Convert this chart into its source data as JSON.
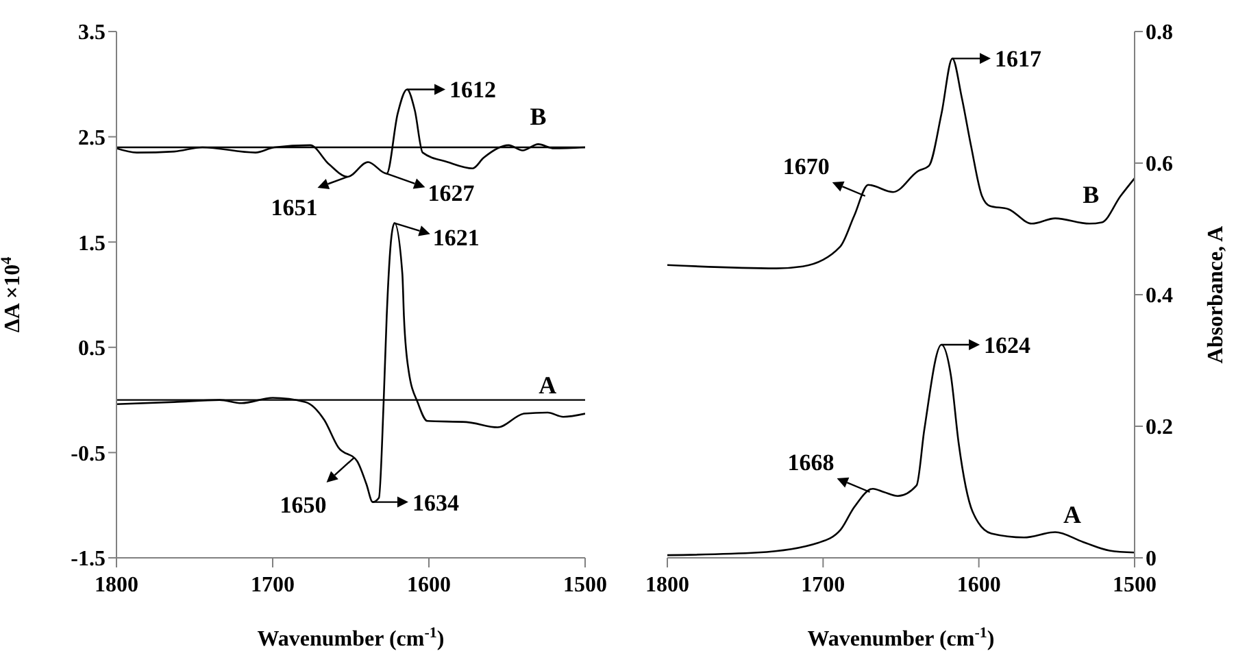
{
  "chart_data": [
    {
      "type": "line",
      "xlabel": "Wavenumber (cm$^{-1}$)",
      "ylabel": "ΔA ×10$^{4}$",
      "xlim": [
        1800,
        1500
      ],
      "xticks": [
        1800,
        1700,
        1600,
        1500
      ],
      "ylim": [
        -1.5,
        3.5
      ],
      "yticks": [
        -1.5,
        -0.5,
        0.5,
        1.5,
        2.5,
        3.5
      ],
      "marker": "none",
      "line_style": "solid",
      "series": [
        {
          "name": "B",
          "color": "#000000",
          "x": [
            1800,
            1787,
            1763,
            1745,
            1711,
            1699,
            1676,
            1664,
            1652,
            1639,
            1627,
            1620,
            1614,
            1609,
            1604,
            1588,
            1572,
            1565,
            1549,
            1540,
            1530,
            1520,
            1500
          ],
          "values": [
            2.39,
            2.35,
            2.36,
            2.4,
            2.35,
            2.4,
            2.42,
            2.24,
            2.12,
            2.26,
            2.15,
            2.72,
            2.95,
            2.75,
            2.35,
            2.26,
            2.2,
            2.3,
            2.42,
            2.37,
            2.43,
            2.39,
            2.4
          ]
        },
        {
          "name": "A",
          "color": "#000000",
          "x": [
            1800,
            1763,
            1734,
            1720,
            1700,
            1679,
            1667,
            1658,
            1646,
            1640,
            1636,
            1632,
            1629,
            1627,
            1624,
            1622,
            1617,
            1616,
            1613,
            1607,
            1601,
            1576,
            1556,
            1539,
            1524,
            1514,
            1500
          ],
          "values": [
            -0.04,
            -0.02,
            0,
            -0.03,
            0.02,
            -0.02,
            -0.19,
            -0.45,
            -0.58,
            -0.8,
            -0.97,
            -0.93,
            -0.03,
            0.8,
            1.55,
            1.68,
            1.2,
            0.8,
            0.28,
            -0.03,
            -0.2,
            -0.21,
            -0.26,
            -0.13,
            -0.12,
            -0.16,
            -0.13
          ]
        }
      ],
      "ref_lines": [
        {
          "axis": "y",
          "value": 2.4,
          "color": "#000000"
        },
        {
          "axis": "y",
          "value": 0,
          "color": "#000000"
        }
      ],
      "annotations": [
        {
          "text": "1612",
          "x": 1614,
          "y": 2.95
        },
        {
          "text": "1651",
          "x": 1652,
          "y": 2.12
        },
        {
          "text": "1627",
          "x": 1627,
          "y": 2.15
        },
        {
          "text": "1621",
          "x": 1622,
          "y": 1.68
        },
        {
          "text": "1650",
          "x": 1648,
          "y": -0.55
        },
        {
          "text": "1634",
          "x": 1636,
          "y": -0.97
        }
      ]
    },
    {
      "type": "line",
      "xlabel": "Wavenumber (cm$^{-1}$)",
      "ylabel": "Absorbance, A",
      "xlim": [
        1800,
        1500
      ],
      "xticks": [
        1800,
        1700,
        1600,
        1500
      ],
      "ylim": [
        0,
        0.8
      ],
      "yticks": [
        0,
        0.2,
        0.4,
        0.6,
        0.8
      ],
      "marker": "none",
      "line_style": "solid",
      "series": [
        {
          "name": "B",
          "color": "#000000",
          "x": [
            1800,
            1730,
            1713,
            1689,
            1680,
            1671,
            1655,
            1639,
            1632,
            1624,
            1617,
            1611,
            1605,
            1598,
            1593,
            1581,
            1566,
            1551,
            1529,
            1521,
            1509,
            1500
          ],
          "values": [
            0.445,
            0.44,
            0.443,
            0.473,
            0.52,
            0.567,
            0.556,
            0.588,
            0.596,
            0.675,
            0.759,
            0.7,
            0.626,
            0.55,
            0.535,
            0.53,
            0.508,
            0.516,
            0.508,
            0.51,
            0.55,
            0.577
          ]
        },
        {
          "name": "A",
          "color": "#000000",
          "x": [
            1800,
            1742,
            1703,
            1689,
            1680,
            1668,
            1661,
            1652,
            1640,
            1635,
            1624,
            1618,
            1613,
            1604,
            1592,
            1571,
            1551,
            1533,
            1516,
            1500
          ],
          "values": [
            0.004,
            0.008,
            0.023,
            0.042,
            0.077,
            0.105,
            0.1,
            0.094,
            0.11,
            0.195,
            0.324,
            0.278,
            0.175,
            0.07,
            0.037,
            0.031,
            0.039,
            0.024,
            0.011,
            0.008
          ]
        }
      ],
      "annotations": [
        {
          "text": "1617",
          "x": 1617,
          "y": 0.759
        },
        {
          "text": "1670",
          "x": 1673,
          "y": 0.55
        },
        {
          "text": "1624",
          "x": 1624,
          "y": 0.324
        },
        {
          "text": "1668",
          "x": 1670,
          "y": 0.1
        }
      ]
    }
  ]
}
